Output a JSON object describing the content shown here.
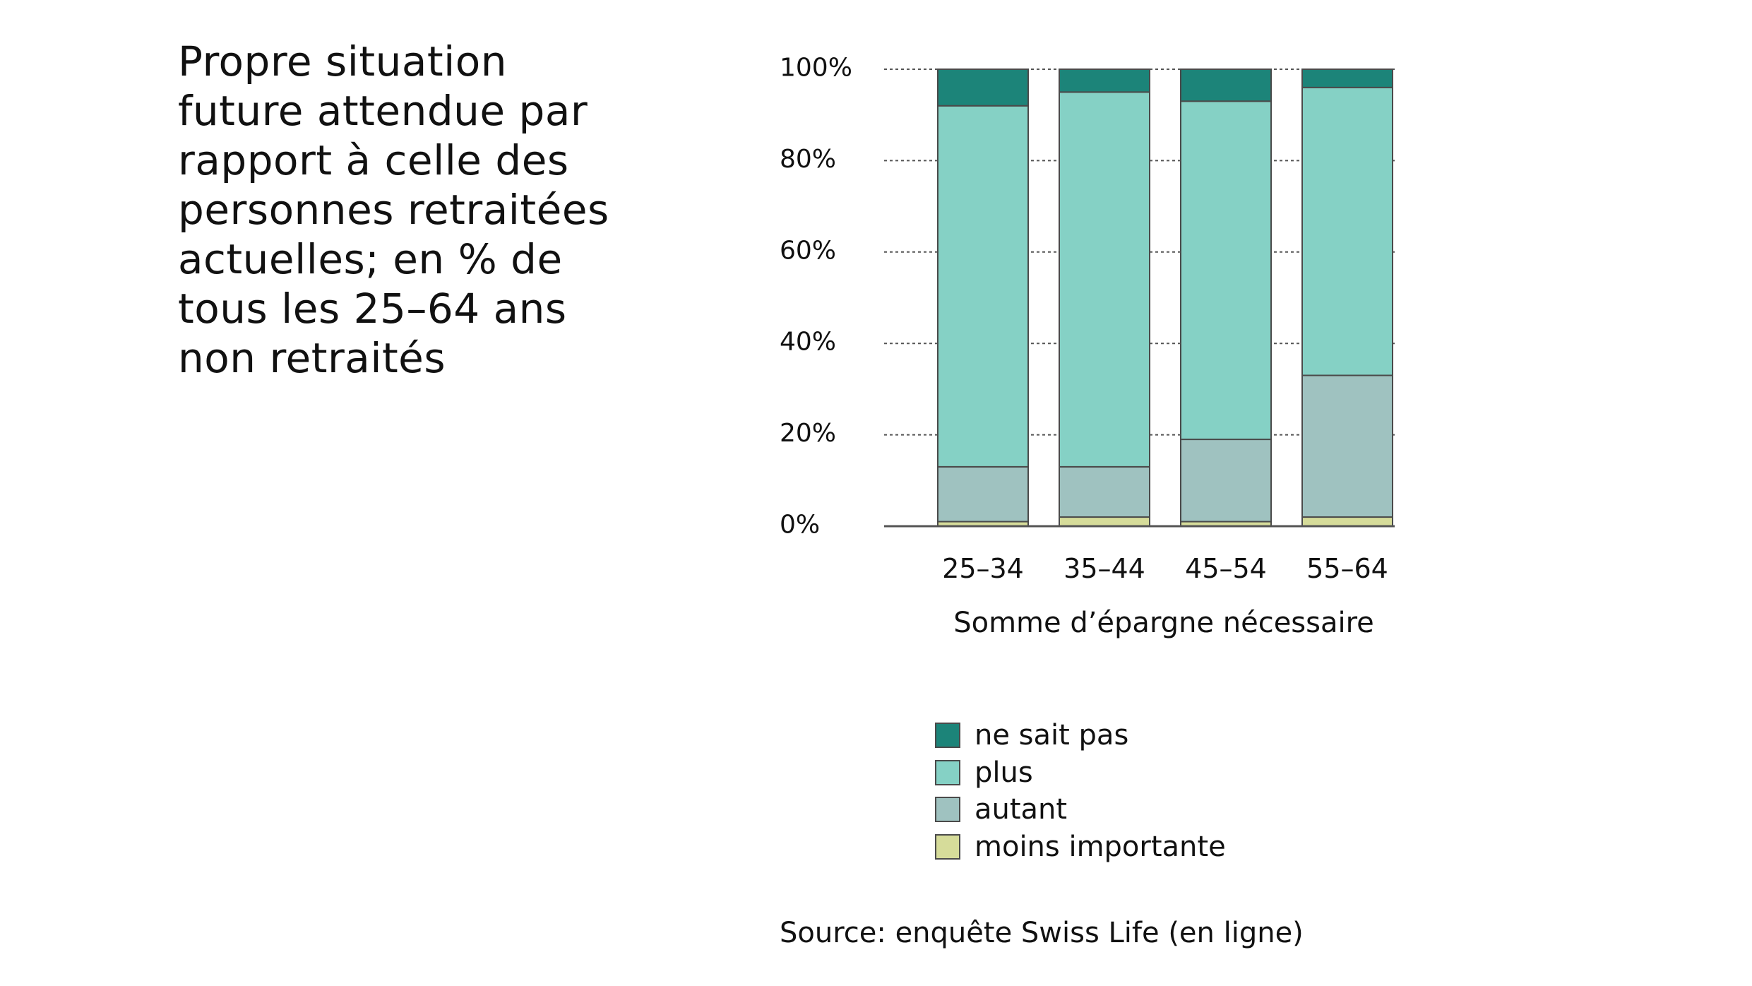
{
  "title": "Propre situation\nfuture attendue par\nrapport à celle des\npersonnes retraitées\nactuelles; en % de\ntous les 25–64 ans\nnon retraités",
  "chart_data": {
    "type": "bar",
    "stacked": true,
    "title": "Propre situation future attendue par rapport à celle des personnes retraitées actuelles; en % de tous les 25–64 ans non retraités",
    "xlabel": "Somme d’épargne nécessaire",
    "ylabel": "",
    "ylim": [
      0,
      100
    ],
    "yticks": [
      0,
      20,
      40,
      60,
      80,
      100
    ],
    "ytick_labels": [
      "0%",
      "20%",
      "40%",
      "60%",
      "80%",
      "100%"
    ],
    "grid": "horizontal dotted",
    "categories": [
      "25–34",
      "35–44",
      "45–54",
      "55–64"
    ],
    "series": [
      {
        "name": "moins importante",
        "color": "#d6dc9a",
        "values": [
          1,
          2,
          1,
          2
        ]
      },
      {
        "name": "autant",
        "color": "#9fc2c0",
        "values": [
          12,
          11,
          18,
          31
        ]
      },
      {
        "name": "plus",
        "color": "#85d1c5",
        "values": [
          79,
          82,
          74,
          63
        ]
      },
      {
        "name": "ne sait pas",
        "color": "#1c8479",
        "values": [
          8,
          5,
          7,
          4
        ]
      }
    ],
    "legend_position": "bottom",
    "legend_order": [
      "ne sait pas",
      "plus",
      "autant",
      "moins importante"
    ]
  },
  "source": "Source: enquête Swiss Life (en ligne)"
}
